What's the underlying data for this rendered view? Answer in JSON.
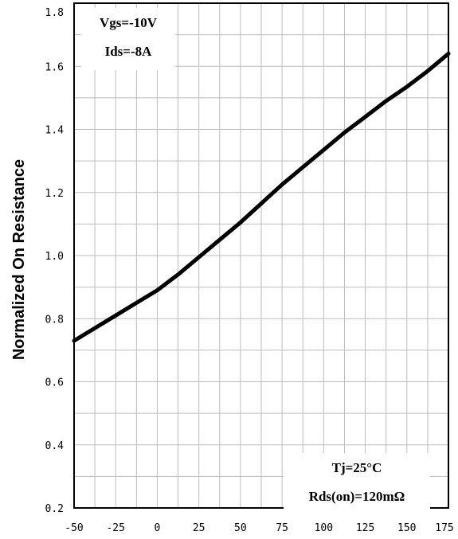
{
  "chart_data": {
    "type": "line",
    "title": "",
    "xlabel": "",
    "ylabel": "Normalized On Resistance",
    "xlim": [
      -50,
      175
    ],
    "ylim": [
      0.2,
      1.8
    ],
    "grid": true,
    "x_ticks": [
      "-50",
      "-25",
      "0",
      "25",
      "50",
      "75",
      "100",
      "125",
      "150",
      "175"
    ],
    "y_ticks": [
      "0.2",
      "0.4",
      "0.6",
      "0.8",
      "1.0",
      "1.2",
      "1.4",
      "1.6",
      "1.8"
    ],
    "series": [
      {
        "x": [
          -50,
          -37.5,
          -25,
          -12.5,
          0,
          12.5,
          25,
          37.5,
          50,
          62.5,
          75,
          87.5,
          100,
          112.5,
          125,
          137.5,
          150,
          162.5,
          175
        ],
        "y": [
          0.73,
          0.77,
          0.81,
          0.85,
          0.89,
          0.94,
          0.995,
          1.05,
          1.105,
          1.165,
          1.225,
          1.28,
          1.335,
          1.39,
          1.44,
          1.49,
          1.535,
          1.585,
          1.64
        ]
      }
    ],
    "annotations": {
      "top_left": [
        "Vgs=-10V",
        "Ids=-8A"
      ],
      "bottom_right": [
        "Tj=25°C",
        "Rds(on)=120mΩ"
      ]
    }
  }
}
